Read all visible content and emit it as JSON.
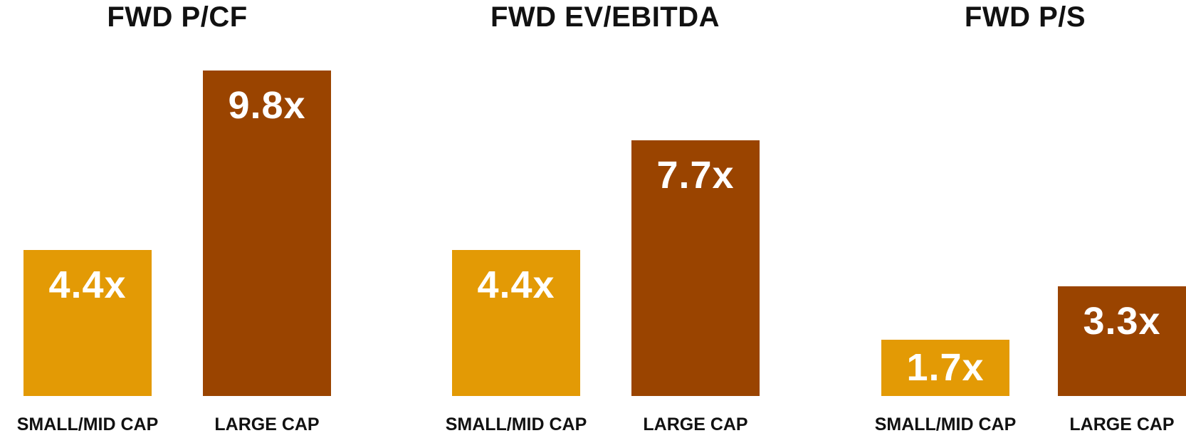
{
  "chart_data": [
    {
      "type": "bar",
      "title": "FWD P/CF",
      "categories": [
        "SMALL/MID CAP",
        "LARGE CAP"
      ],
      "values": [
        4.4,
        9.8
      ],
      "labels": [
        "4.4x",
        "9.8x"
      ]
    },
    {
      "type": "bar",
      "title": "FWD EV/EBITDA",
      "categories": [
        "SMALL/MID CAP",
        "LARGE CAP"
      ],
      "values": [
        4.4,
        7.7
      ],
      "labels": [
        "4.4x",
        "7.7x"
      ]
    },
    {
      "type": "bar",
      "title": "FWD P/S",
      "categories": [
        "SMALL/MID CAP",
        "LARGE CAP"
      ],
      "values": [
        1.7,
        3.3
      ],
      "labels": [
        "1.7x",
        "3.3x"
      ]
    }
  ],
  "colors": {
    "small_mid": "#E39A05",
    "large": "#9A4400"
  }
}
